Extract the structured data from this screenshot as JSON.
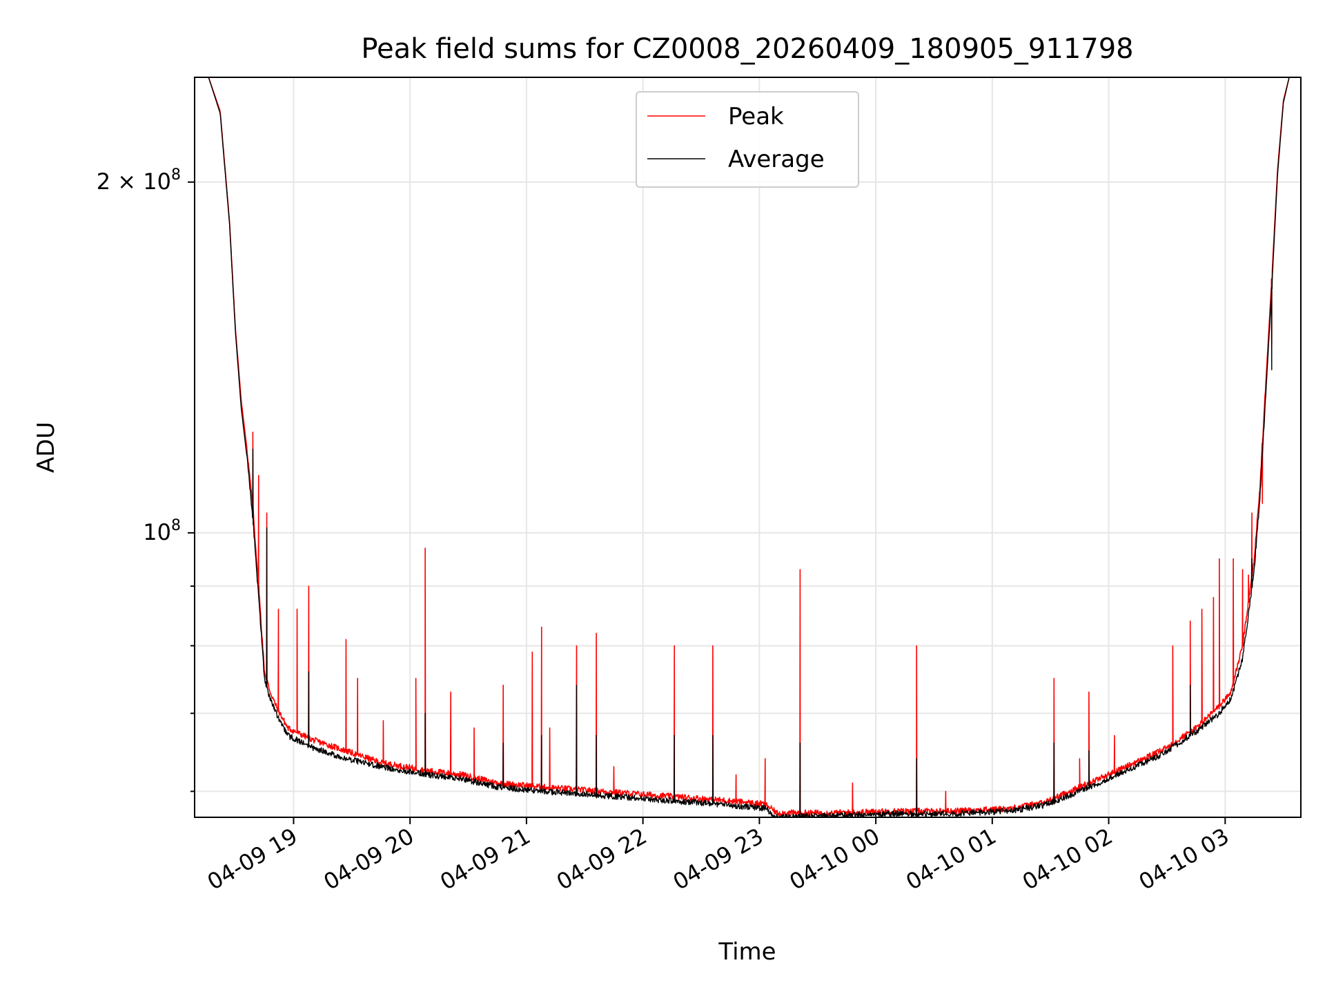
{
  "chart_data": {
    "type": "line",
    "title": "Peak field sums for CZ0008_20260409_180905_911798",
    "xlabel": "Time",
    "ylabel": "ADU",
    "yscale": "log",
    "ylim": [
      57000000,
      246000000
    ],
    "xlim_hours": [
      0.0,
      9.5
    ],
    "x_start": "04-09 18:09",
    "grid": true,
    "legend_position": "upper center",
    "x_tick_labels": [
      "04-09 19",
      "04-09 20",
      "04-09 21",
      "04-09 22",
      "04-09 23",
      "04-10 00",
      "04-10 01",
      "04-10 02",
      "04-10 03"
    ],
    "x_tick_hours": [
      0.85,
      1.85,
      2.85,
      3.85,
      4.85,
      5.85,
      6.85,
      7.85,
      8.85
    ],
    "y_major_ticks": [
      {
        "value": 100000000,
        "base": "10",
        "exp": "8",
        "mantissa": ""
      },
      {
        "value": 200000000,
        "base": "10",
        "exp": "8",
        "mantissa": "2 × "
      }
    ],
    "y_minor_ticks": [
      60000000,
      70000000,
      80000000,
      90000000
    ],
    "series": [
      {
        "name": "Peak",
        "color": "#ff0000",
        "baseline": {
          "x_hours": [
            0.0,
            0.12,
            0.22,
            0.3,
            0.35,
            0.4,
            0.45,
            0.5,
            0.55,
            0.6,
            0.65,
            0.7,
            0.8,
            1.0,
            1.3,
            1.6,
            1.8,
            2.0,
            2.3,
            2.6,
            3.0,
            3.5,
            4.0,
            4.5,
            4.9,
            5.0,
            5.5,
            6.0,
            6.5,
            7.0,
            7.3,
            7.6,
            8.0,
            8.3,
            8.6,
            8.8,
            8.9,
            9.0,
            9.1,
            9.15,
            9.2,
            9.25,
            9.3,
            9.35,
            9.4,
            9.5
          ],
          "y": [
            246000000,
            246000000,
            230000000,
            185000000,
            150000000,
            130000000,
            118000000,
            105000000,
            90000000,
            76000000,
            73000000,
            71000000,
            68000000,
            66500000,
            65000000,
            63500000,
            63000000,
            62500000,
            62000000,
            61000000,
            60500000,
            60000000,
            59500000,
            59000000,
            58500000,
            57500000,
            57500000,
            57700000,
            57700000,
            58000000,
            58700000,
            60500000,
            63000000,
            65000000,
            68000000,
            71000000,
            73000000,
            80000000,
            95000000,
            110000000,
            135000000,
            165000000,
            205000000,
            235000000,
            246000000,
            246000000
          ]
        },
        "spikes": [
          {
            "x_hours": 0.5,
            "y": 122000000
          },
          {
            "x_hours": 0.55,
            "y": 112000000
          },
          {
            "x_hours": 0.62,
            "y": 104000000
          },
          {
            "x_hours": 0.72,
            "y": 86000000
          },
          {
            "x_hours": 0.88,
            "y": 86000000
          },
          {
            "x_hours": 0.98,
            "y": 90000000
          },
          {
            "x_hours": 1.3,
            "y": 81000000
          },
          {
            "x_hours": 1.4,
            "y": 75000000
          },
          {
            "x_hours": 1.62,
            "y": 69000000
          },
          {
            "x_hours": 1.9,
            "y": 75000000
          },
          {
            "x_hours": 1.98,
            "y": 97000000
          },
          {
            "x_hours": 2.2,
            "y": 73000000
          },
          {
            "x_hours": 2.4,
            "y": 68000000
          },
          {
            "x_hours": 2.65,
            "y": 74000000
          },
          {
            "x_hours": 2.9,
            "y": 79000000
          },
          {
            "x_hours": 2.98,
            "y": 83000000
          },
          {
            "x_hours": 3.05,
            "y": 68000000
          },
          {
            "x_hours": 3.28,
            "y": 80000000
          },
          {
            "x_hours": 3.45,
            "y": 82000000
          },
          {
            "x_hours": 3.6,
            "y": 63000000
          },
          {
            "x_hours": 4.12,
            "y": 80000000
          },
          {
            "x_hours": 4.45,
            "y": 80000000
          },
          {
            "x_hours": 4.65,
            "y": 62000000
          },
          {
            "x_hours": 4.9,
            "y": 64000000
          },
          {
            "x_hours": 5.2,
            "y": 93000000
          },
          {
            "x_hours": 5.65,
            "y": 61000000
          },
          {
            "x_hours": 6.2,
            "y": 80000000
          },
          {
            "x_hours": 6.45,
            "y": 60000000
          },
          {
            "x_hours": 7.38,
            "y": 75000000
          },
          {
            "x_hours": 7.6,
            "y": 64000000
          },
          {
            "x_hours": 7.68,
            "y": 73000000
          },
          {
            "x_hours": 7.9,
            "y": 67000000
          },
          {
            "x_hours": 8.4,
            "y": 80000000
          },
          {
            "x_hours": 8.55,
            "y": 84000000
          },
          {
            "x_hours": 8.65,
            "y": 86000000
          },
          {
            "x_hours": 8.75,
            "y": 88000000
          },
          {
            "x_hours": 8.8,
            "y": 95000000
          },
          {
            "x_hours": 8.92,
            "y": 95000000
          },
          {
            "x_hours": 9.0,
            "y": 93000000
          },
          {
            "x_hours": 9.05,
            "y": 92000000
          },
          {
            "x_hours": 9.08,
            "y": 104000000
          },
          {
            "x_hours": 9.17,
            "y": 106000000
          },
          {
            "x_hours": 9.25,
            "y": 145000000
          }
        ]
      },
      {
        "name": "Average",
        "color": "#000000",
        "baseline": {
          "x_hours": [
            0.0,
            0.12,
            0.22,
            0.3,
            0.35,
            0.4,
            0.45,
            0.5,
            0.55,
            0.6,
            0.65,
            0.7,
            0.8,
            1.0,
            1.3,
            1.6,
            1.8,
            2.0,
            2.3,
            2.6,
            3.0,
            3.5,
            4.0,
            4.5,
            4.9,
            5.0,
            5.5,
            6.0,
            6.5,
            7.0,
            7.3,
            7.6,
            8.0,
            8.3,
            8.6,
            8.8,
            8.9,
            9.0,
            9.1,
            9.15,
            9.2,
            9.25,
            9.3,
            9.35,
            9.4,
            9.5
          ],
          "y": [
            246000000,
            246000000,
            229000000,
            184000000,
            149000000,
            128000000,
            116000000,
            103000000,
            88000000,
            75000000,
            72000000,
            70000000,
            67000000,
            65500000,
            64000000,
            63000000,
            62500000,
            62000000,
            61500000,
            60500000,
            60000000,
            59500000,
            59000000,
            58500000,
            58000000,
            57000000,
            57200000,
            57400000,
            57400000,
            57700000,
            58400000,
            60000000,
            62500000,
            64500000,
            67500000,
            70000000,
            72000000,
            78000000,
            93000000,
            108000000,
            132000000,
            162000000,
            203000000,
            234000000,
            246000000,
            246000000
          ]
        },
        "spikes": [
          {
            "x_hours": 0.5,
            "y": 118000000
          },
          {
            "x_hours": 0.62,
            "y": 101000000
          },
          {
            "x_hours": 0.98,
            "y": 76000000
          },
          {
            "x_hours": 1.98,
            "y": 70000000
          },
          {
            "x_hours": 2.65,
            "y": 66000000
          },
          {
            "x_hours": 2.98,
            "y": 67000000
          },
          {
            "x_hours": 3.28,
            "y": 74000000
          },
          {
            "x_hours": 3.45,
            "y": 67000000
          },
          {
            "x_hours": 4.12,
            "y": 67000000
          },
          {
            "x_hours": 4.45,
            "y": 67000000
          },
          {
            "x_hours": 5.2,
            "y": 66000000
          },
          {
            "x_hours": 6.2,
            "y": 64000000
          },
          {
            "x_hours": 7.38,
            "y": 66000000
          },
          {
            "x_hours": 7.68,
            "y": 65000000
          },
          {
            "x_hours": 8.55,
            "y": 74000000
          },
          {
            "x_hours": 9.08,
            "y": 95000000
          },
          {
            "x_hours": 9.25,
            "y": 138000000
          }
        ]
      }
    ]
  }
}
